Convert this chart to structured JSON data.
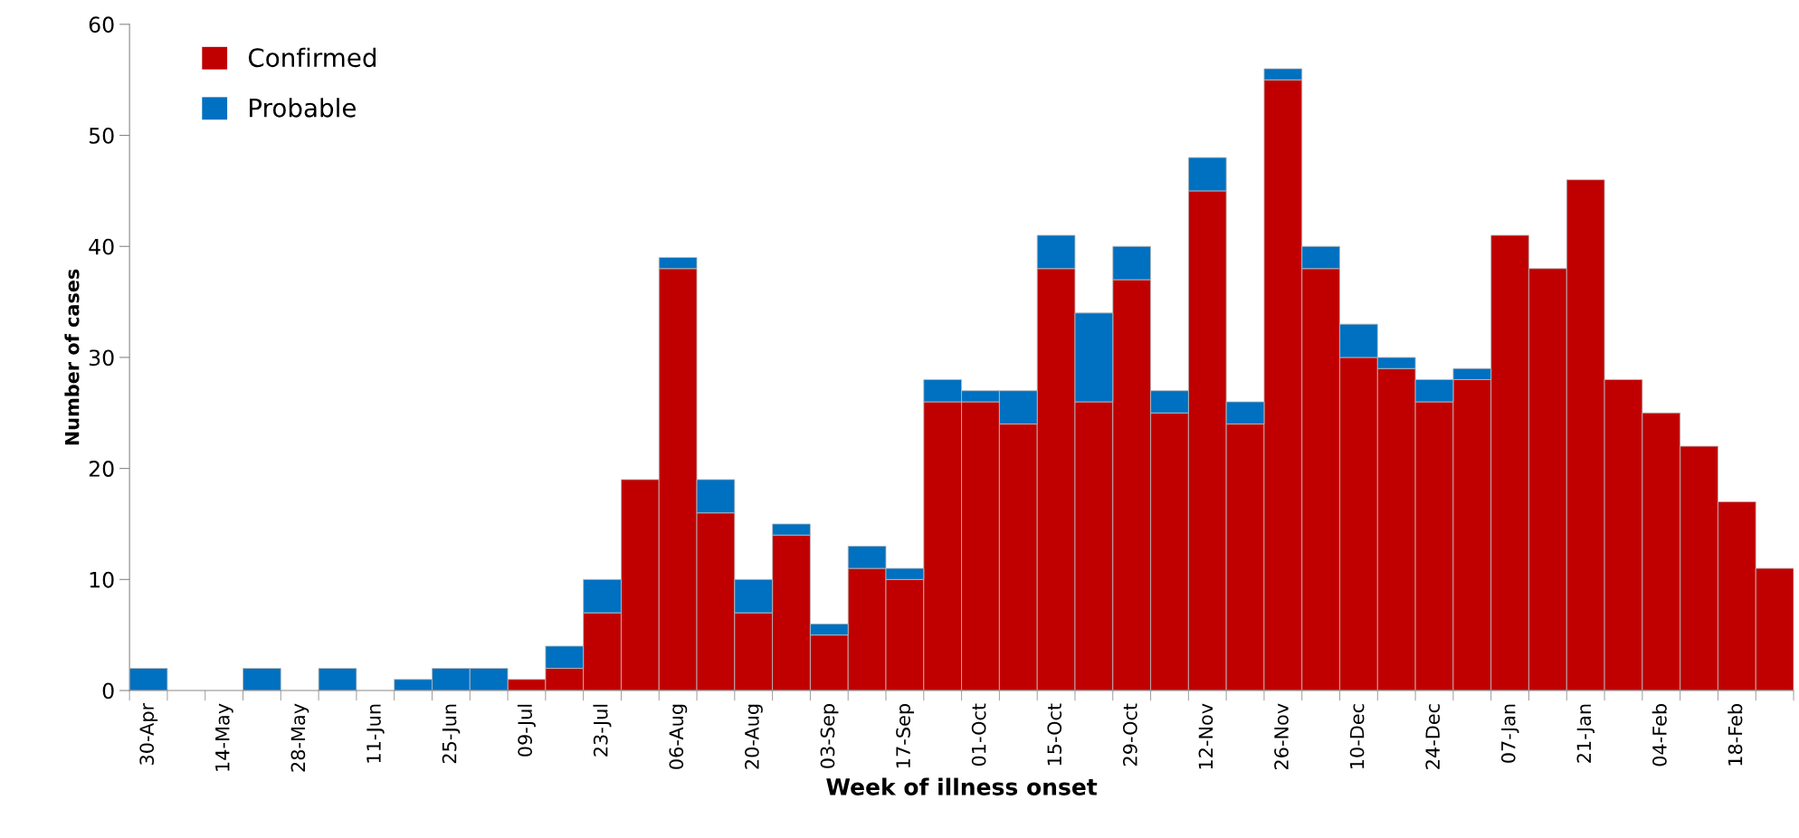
{
  "chart_data": {
    "type": "bar",
    "stacked": true,
    "xlabel": "Week of illness onset",
    "ylabel": "Number of cases",
    "categories": [
      "30-Apr",
      null,
      "14-May",
      null,
      "28-May",
      null,
      "11-Jun",
      null,
      "25-Jun",
      null,
      "09-Jul",
      null,
      "23-Jul",
      null,
      "06-Aug",
      null,
      "20-Aug",
      null,
      "03-Sep",
      null,
      "17-Sep",
      null,
      "01-Oct",
      null,
      "15-Oct",
      null,
      "29-Oct",
      null,
      "12-Nov",
      null,
      "26-Nov",
      null,
      "10-Dec",
      null,
      "24-Dec",
      null,
      "07-Jan",
      null,
      "21-Jan",
      null,
      "04-Feb",
      null,
      "18-Feb",
      null
    ],
    "series": [
      {
        "name": "Confirmed",
        "color": "#c00000",
        "values": [
          0,
          0,
          0,
          0,
          0,
          0,
          0,
          0,
          0,
          0,
          1,
          2,
          7,
          19,
          38,
          16,
          7,
          14,
          5,
          11,
          10,
          26,
          26,
          24,
          38,
          26,
          37,
          25,
          45,
          24,
          55,
          38,
          30,
          29,
          26,
          28,
          41,
          38,
          46,
          28,
          25,
          22,
          17,
          11
        ]
      },
      {
        "name": "Probable",
        "color": "#0070c0",
        "values": [
          2,
          0,
          0,
          2,
          0,
          2,
          0,
          1,
          2,
          2,
          0,
          2,
          3,
          0,
          1,
          3,
          3,
          1,
          1,
          2,
          1,
          2,
          1,
          3,
          3,
          8,
          3,
          2,
          3,
          2,
          1,
          2,
          3,
          1,
          2,
          1,
          0,
          0,
          0,
          0,
          0,
          0,
          0,
          0
        ]
      }
    ],
    "ylim": [
      0,
      60
    ],
    "yticks": [
      0,
      10,
      20,
      30,
      40,
      50,
      60
    ],
    "grid": false,
    "legend": "top left"
  }
}
